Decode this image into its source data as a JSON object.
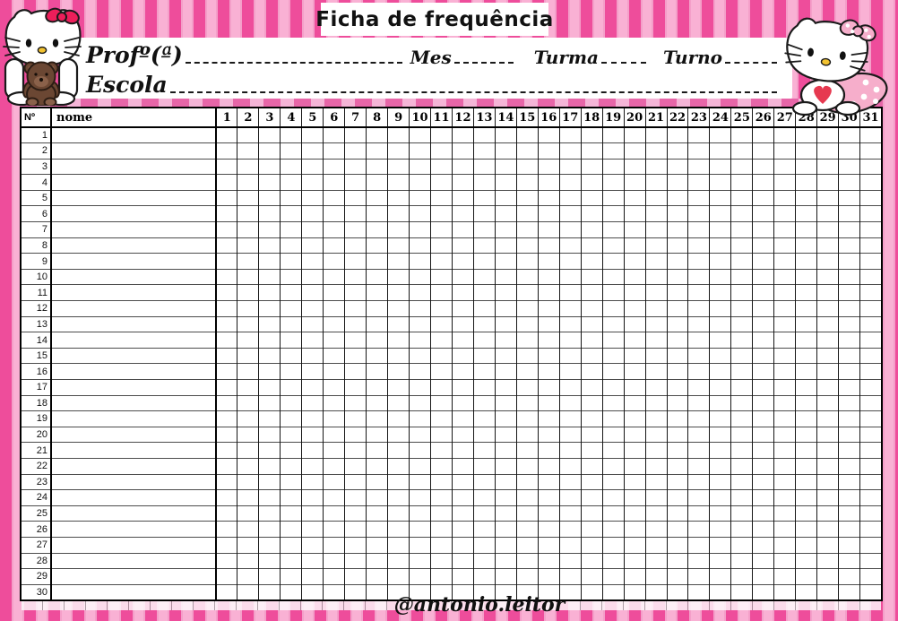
{
  "page": {
    "title": "Ficha de frequência",
    "credit": "@antonio.leitor"
  },
  "form": {
    "teacher_label": "Profº(ª)",
    "month_label": "Mes",
    "class_label": "Turma",
    "shift_label": "Turno",
    "school_label": "Escola"
  },
  "table": {
    "number_header": "Nº",
    "name_header": "nome",
    "day_headers": [
      "1",
      "2",
      "3",
      "4",
      "5",
      "6",
      "7",
      "8",
      "9",
      "10",
      "11",
      "12",
      "13",
      "14",
      "15",
      "16",
      "17",
      "18",
      "19",
      "20",
      "21",
      "22",
      "23",
      "24",
      "25",
      "26",
      "27",
      "28",
      "29",
      "30",
      "31"
    ],
    "row_numbers": [
      "1",
      "2",
      "3",
      "4",
      "5",
      "6",
      "7",
      "8",
      "9",
      "10",
      "11",
      "12",
      "13",
      "14",
      "15",
      "16",
      "17",
      "18",
      "19",
      "20",
      "21",
      "22",
      "23",
      "24",
      "25",
      "26",
      "27",
      "28",
      "29",
      "30"
    ]
  },
  "icons": {
    "left": "hello-kitty-with-teddy-bear-icon",
    "right": "hello-kitty-heart-bib-icon"
  },
  "colors": {
    "stripe_dark": "#ee4d9b",
    "stripe_light": "#f9b1d4",
    "tape_dark": "#e766a8",
    "tape_light": "#f5b5d7",
    "bow_red": "#ec1e5a",
    "bow_pink": "#f6aecb",
    "heart_red": "#e63950",
    "bear_brown": "#6b4733",
    "nose_yellow": "#f2c230",
    "grid_line": "#4c4c4c",
    "panel_white": "#ffffff"
  }
}
